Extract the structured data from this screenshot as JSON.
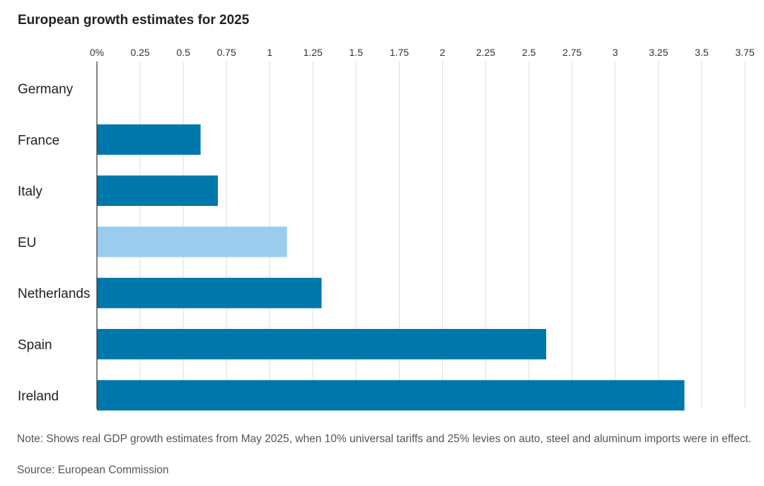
{
  "title": "European growth estimates for 2025",
  "chart_data": {
    "type": "bar",
    "orientation": "horizontal",
    "categories": [
      "Germany",
      "France",
      "Italy",
      "EU",
      "Netherlands",
      "Spain",
      "Ireland"
    ],
    "values": [
      0,
      0.6,
      0.7,
      1.1,
      1.3,
      2.6,
      3.4
    ],
    "highlight": [
      "EU"
    ],
    "x_ticks": [
      "0%",
      "0.25",
      "0.5",
      "0.75",
      "1",
      "1.25",
      "1.5",
      "1.75",
      "2",
      "2.25",
      "2.5",
      "2.75",
      "3",
      "3.25",
      "3.5",
      "3.75"
    ],
    "xlim": [
      0,
      3.75
    ],
    "grid": true,
    "colors": {
      "bar": "#0077aa",
      "highlight": "#99cced"
    }
  },
  "note": "Note: Shows real GDP growth estimates from May 2025, when 10% universal tariffs and 25% levies on auto, steel and aluminum imports were in effect.",
  "source": "Source: European Commission"
}
